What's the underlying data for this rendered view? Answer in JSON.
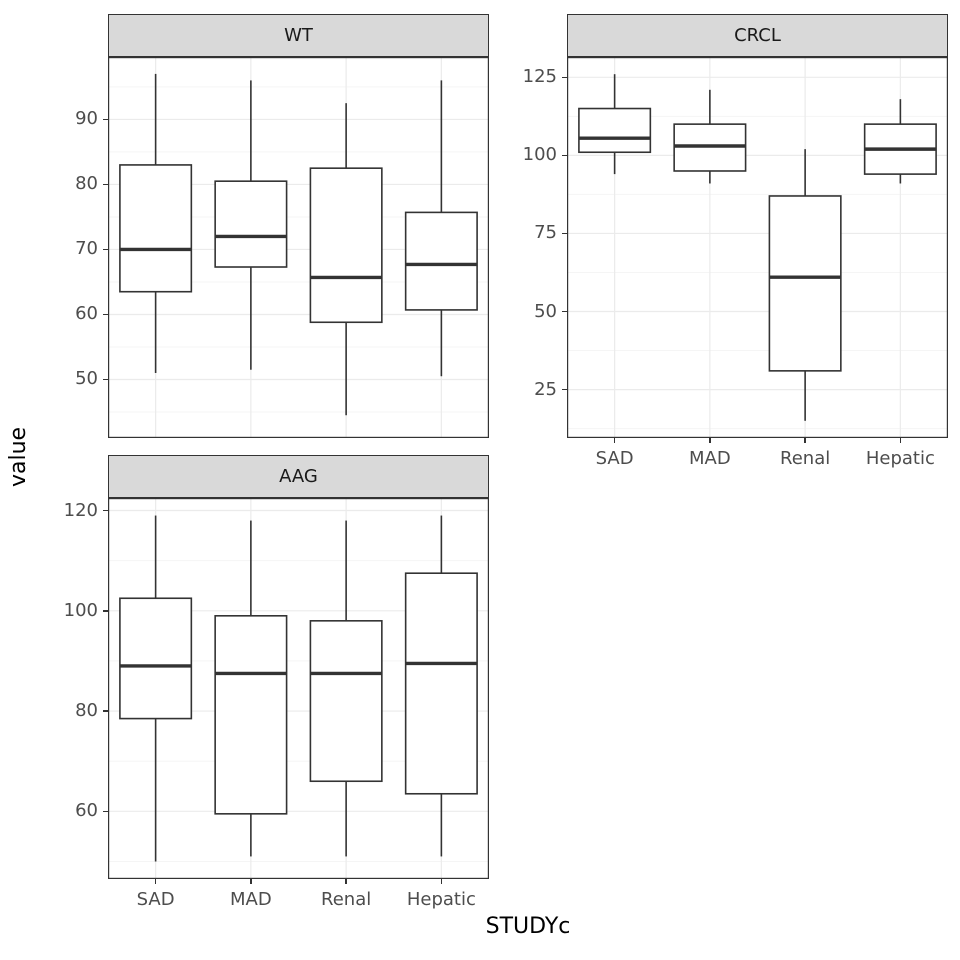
{
  "figure": {
    "ylabel": "value",
    "xlabel": "STUDYc"
  },
  "chart_data": {
    "type": "boxplot",
    "title": "",
    "xlabel": "STUDYc",
    "ylabel": "value",
    "legend": "none",
    "grid": true,
    "facet_variable": "variable",
    "categories": [
      "SAD",
      "MAD",
      "Renal",
      "Hepatic"
    ],
    "facets": [
      {
        "label": "WT",
        "grid_col": 0,
        "grid_row": 0,
        "show_x_axis": false,
        "ylim": [
          41.0,
          99.6
        ],
        "yticks": [
          50,
          60,
          70,
          80,
          90
        ],
        "boxes": [
          {
            "category": "SAD",
            "whisker_low": 51.0,
            "q1": 63.5,
            "median": 70.0,
            "q3": 83.0,
            "whisker_high": 97.0
          },
          {
            "category": "MAD",
            "whisker_low": 51.5,
            "q1": 67.3,
            "median": 72.0,
            "q3": 80.5,
            "whisker_high": 96.0
          },
          {
            "category": "Renal",
            "whisker_low": 44.5,
            "q1": 58.8,
            "median": 65.7,
            "q3": 82.5,
            "whisker_high": 92.5
          },
          {
            "category": "Hepatic",
            "whisker_low": 50.5,
            "q1": 60.7,
            "median": 67.7,
            "q3": 75.7,
            "whisker_high": 96.0
          }
        ]
      },
      {
        "label": "CRCL",
        "grid_col": 1,
        "grid_row": 0,
        "show_x_axis": true,
        "ylim": [
          9.5,
          131.5
        ],
        "yticks": [
          25,
          50,
          75,
          100,
          125
        ],
        "boxes": [
          {
            "category": "SAD",
            "whisker_low": 94.0,
            "q1": 101.0,
            "median": 105.5,
            "q3": 115.0,
            "whisker_high": 126.0
          },
          {
            "category": "MAD",
            "whisker_low": 91.0,
            "q1": 95.0,
            "median": 103.0,
            "q3": 110.0,
            "whisker_high": 121.0
          },
          {
            "category": "Renal",
            "whisker_low": 15.0,
            "q1": 31.0,
            "median": 61.0,
            "q3": 87.0,
            "whisker_high": 102.0
          },
          {
            "category": "Hepatic",
            "whisker_low": 91.0,
            "q1": 94.0,
            "median": 102.0,
            "q3": 110.0,
            "whisker_high": 118.0
          }
        ]
      },
      {
        "label": "AAG",
        "grid_col": 0,
        "grid_row": 1,
        "show_x_axis": true,
        "ylim": [
          46.5,
          122.5
        ],
        "yticks": [
          60,
          80,
          100,
          120
        ],
        "boxes": [
          {
            "category": "SAD",
            "whisker_low": 50.0,
            "q1": 78.5,
            "median": 89.0,
            "q3": 102.5,
            "whisker_high": 119.0
          },
          {
            "category": "MAD",
            "whisker_low": 51.0,
            "q1": 59.5,
            "median": 87.5,
            "q3": 99.0,
            "whisker_high": 118.0
          },
          {
            "category": "Renal",
            "whisker_low": 51.0,
            "q1": 66.0,
            "median": 87.5,
            "q3": 98.0,
            "whisker_high": 118.0
          },
          {
            "category": "Hepatic",
            "whisker_low": 51.0,
            "q1": 63.5,
            "median": 89.5,
            "q3": 107.5,
            "whisker_high": 119.0
          }
        ]
      }
    ],
    "colors": {
      "box_stroke": "#333333",
      "box_fill": "#ffffff",
      "strip_bg": "#d9d9d9",
      "panel_border": "#333333",
      "grid_major": "#ebebeb",
      "grid_minor": "#f5f5f5",
      "tick_mark": "#333333",
      "tick_label": "#4d4d4d"
    }
  }
}
